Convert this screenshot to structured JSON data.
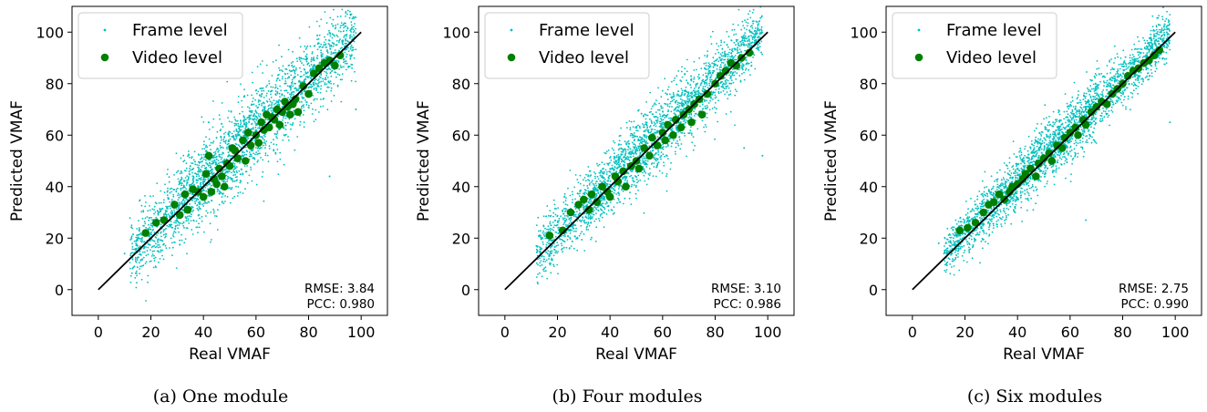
{
  "chart_data": [
    {
      "type": "scatter",
      "xlabel": "Real VMAF",
      "ylabel": "Predicted VMAF",
      "xlim": [
        -10,
        110
      ],
      "ylim": [
        -10,
        110
      ],
      "xticks": [
        0,
        20,
        40,
        60,
        80,
        100
      ],
      "yticks": [
        0,
        20,
        40,
        60,
        80,
        100
      ],
      "legend": {
        "placement": "top-left",
        "entries": [
          "Frame level",
          "Video level"
        ]
      },
      "stats": [
        "RMSE: 3.84",
        "PCC: 0.980"
      ],
      "caption": "(a) One module",
      "reference_line": {
        "from": [
          0,
          0
        ],
        "to": [
          100,
          100
        ],
        "color": "#000000"
      },
      "series": [
        {
          "name": "Frame level",
          "color": "#00bfbf",
          "marker": "small-dot",
          "description_points": "approx. 3000 frame-level samples spread around the diagonal",
          "x": [
            10,
            15,
            20,
            25,
            30,
            35,
            40,
            45,
            50,
            55,
            60,
            65,
            70,
            75,
            80,
            85,
            90,
            95,
            98,
            88,
            42,
            35,
            77,
            62
          ],
          "y": [
            14,
            20,
            22,
            29,
            33,
            38,
            42,
            47,
            52,
            58,
            62,
            66,
            71,
            75,
            80,
            85,
            89,
            94,
            70,
            44,
            65,
            48,
            90,
            75
          ]
        },
        {
          "name": "Video level",
          "color": "#007f00",
          "marker": "dot",
          "x": [
            18,
            22,
            25,
            29,
            31,
            33,
            34,
            36,
            38,
            40,
            41,
            42,
            43,
            44,
            45,
            46,
            47,
            48,
            49,
            50,
            51,
            52,
            53,
            55,
            56,
            57,
            58,
            60,
            61,
            62,
            63,
            64,
            65,
            66,
            67,
            68,
            69,
            70,
            71,
            72,
            73,
            74,
            75,
            76,
            78,
            80,
            82,
            84,
            86,
            88,
            90,
            92
          ],
          "y": [
            22,
            26,
            27,
            33,
            29,
            37,
            31,
            39,
            38,
            36,
            45,
            52,
            38,
            43,
            41,
            47,
            44,
            40,
            49,
            48,
            55,
            54,
            51,
            58,
            50,
            61,
            56,
            60,
            57,
            65,
            62,
            68,
            63,
            67,
            66,
            70,
            64,
            69,
            73,
            71,
            68,
            72,
            74,
            69,
            79,
            76,
            84,
            86,
            88,
            89,
            87,
            91
          ]
        }
      ]
    },
    {
      "type": "scatter",
      "xlabel": "Real VMAF",
      "ylabel": "Predicted VMAF",
      "xlim": [
        -10,
        110
      ],
      "ylim": [
        -10,
        110
      ],
      "xticks": [
        0,
        20,
        40,
        60,
        80,
        100
      ],
      "yticks": [
        0,
        20,
        40,
        60,
        80,
        100
      ],
      "legend": {
        "placement": "top-left",
        "entries": [
          "Frame level",
          "Video level"
        ]
      },
      "stats": [
        "RMSE: 3.10",
        "PCC: 0.986"
      ],
      "caption": "(b) Four modules",
      "reference_line": {
        "from": [
          0,
          0
        ],
        "to": [
          100,
          100
        ],
        "color": "#000000"
      },
      "series": [
        {
          "name": "Frame level",
          "color": "#00bfbf",
          "marker": "small-dot",
          "x": [
            12,
            18,
            24,
            30,
            36,
            42,
            48,
            54,
            60,
            66,
            72,
            78,
            84,
            90,
            96,
            98,
            91
          ],
          "y": [
            17,
            21,
            25,
            31,
            36,
            43,
            48,
            54,
            60,
            66,
            72,
            78,
            84,
            90,
            96,
            52,
            55
          ],
          "description_points": "approx. 3000 frame-level samples, tighter spread"
        },
        {
          "name": "Video level",
          "color": "#007f00",
          "marker": "dot",
          "x": [
            17,
            22,
            25,
            28,
            30,
            32,
            33,
            35,
            37,
            39,
            40,
            42,
            43,
            45,
            46,
            48,
            50,
            51,
            53,
            55,
            56,
            58,
            60,
            61,
            62,
            64,
            65,
            67,
            68,
            70,
            71,
            72,
            74,
            75,
            77,
            80,
            82,
            84,
            86,
            88,
            90,
            93
          ],
          "y": [
            21,
            23,
            30,
            33,
            35,
            31,
            37,
            34,
            40,
            38,
            36,
            44,
            42,
            46,
            40,
            48,
            50,
            47,
            55,
            52,
            59,
            56,
            61,
            58,
            64,
            60,
            66,
            63,
            68,
            70,
            65,
            72,
            74,
            68,
            76,
            80,
            83,
            85,
            88,
            87,
            90,
            92
          ]
        }
      ]
    },
    {
      "type": "scatter",
      "xlabel": "Real VMAF",
      "ylabel": "Predicted VMAF",
      "xlim": [
        -10,
        110
      ],
      "ylim": [
        -10,
        110
      ],
      "xticks": [
        0,
        20,
        40,
        60,
        80,
        100
      ],
      "yticks": [
        0,
        20,
        40,
        60,
        80,
        100
      ],
      "legend": {
        "placement": "top-left",
        "entries": [
          "Frame level",
          "Video level"
        ]
      },
      "stats": [
        "RMSE: 2.75",
        "PCC: 0.990"
      ],
      "caption": "(c) Six modules",
      "reference_line": {
        "from": [
          0,
          0
        ],
        "to": [
          100,
          100
        ],
        "color": "#000000"
      },
      "series": [
        {
          "name": "Frame level",
          "color": "#00bfbf",
          "marker": "small-dot",
          "x": [
            10,
            16,
            22,
            28,
            34,
            40,
            46,
            52,
            58,
            64,
            70,
            76,
            82,
            88,
            94,
            98,
            66
          ],
          "y": [
            18,
            21,
            24,
            29,
            35,
            40,
            46,
            52,
            58,
            64,
            70,
            76,
            82,
            88,
            94,
            65,
            27
          ],
          "description_points": "approx. 3000 frame-level samples, tightest spread"
        },
        {
          "name": "Video level",
          "color": "#007f00",
          "marker": "dot",
          "x": [
            18,
            21,
            24,
            27,
            29,
            31,
            33,
            35,
            37,
            38,
            40,
            42,
            43,
            45,
            47,
            48,
            50,
            52,
            53,
            55,
            57,
            58,
            60,
            62,
            63,
            65,
            66,
            68,
            70,
            72,
            74,
            76,
            78,
            80,
            82,
            84,
            86,
            88,
            90,
            92,
            94
          ],
          "y": [
            23,
            24,
            26,
            30,
            33,
            34,
            37,
            35,
            38,
            40,
            41,
            43,
            45,
            47,
            44,
            49,
            51,
            53,
            50,
            56,
            55,
            59,
            61,
            63,
            60,
            66,
            64,
            69,
            71,
            73,
            72,
            76,
            78,
            80,
            83,
            85,
            86,
            88,
            89,
            91,
            93
          ]
        }
      ]
    }
  ]
}
